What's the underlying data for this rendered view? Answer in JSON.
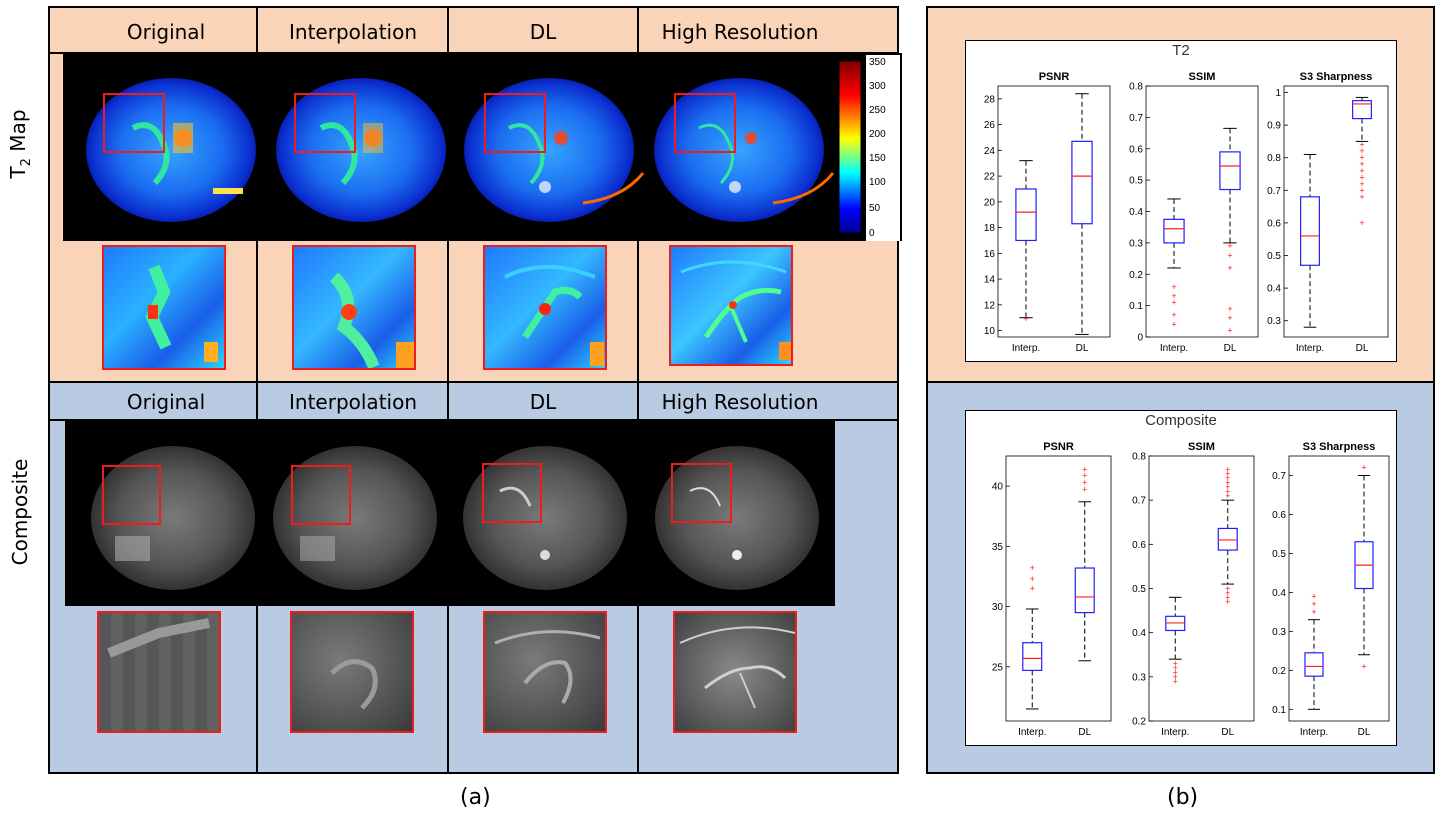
{
  "panel_a": {
    "caption": "(a)",
    "columns": [
      "Original",
      "Interpolation",
      "DL",
      "High Resolution"
    ],
    "rows": [
      {
        "label": "T",
        "sub": "2",
        "suffix": " Map"
      },
      {
        "label": "Composite",
        "sub": "",
        "suffix": ""
      }
    ],
    "colorbar": {
      "ticks": [
        "350",
        "300",
        "250",
        "200",
        "150",
        "100",
        "50",
        "0"
      ]
    }
  },
  "panel_b": {
    "caption": "(b)"
  },
  "chart_data": [
    {
      "type": "box",
      "title": "T2",
      "categories": [
        "Interp.",
        "DL"
      ],
      "subplots": [
        {
          "title": "PSNR",
          "ylim": [
            9.5,
            29
          ],
          "ticks": [
            "10",
            "12",
            "14",
            "16",
            "18",
            "20",
            "22",
            "24",
            "26",
            "28"
          ],
          "boxes": [
            {
              "name": "Interp.",
              "lower_whisker": 11,
              "q1": 17,
              "median": 19.2,
              "q3": 21,
              "upper_whisker": 23.2,
              "outliers": [
                10.9
              ]
            },
            {
              "name": "DL",
              "lower_whisker": 9.7,
              "q1": 18.3,
              "median": 22,
              "q3": 24.7,
              "upper_whisker": 28.4,
              "outliers": []
            }
          ]
        },
        {
          "title": "SSIM",
          "ylim": [
            0,
            0.8
          ],
          "ticks": [
            "0",
            "0.1",
            "0.2",
            "0.3",
            "0.4",
            "0.5",
            "0.6",
            "0.7",
            "0.8"
          ],
          "boxes": [
            {
              "name": "Interp.",
              "lower_whisker": 0.22,
              "q1": 0.3,
              "median": 0.345,
              "q3": 0.375,
              "upper_whisker": 0.44,
              "outliers": [
                0.16,
                0.13,
                0.11,
                0.07,
                0.04
              ]
            },
            {
              "name": "DL",
              "lower_whisker": 0.3,
              "q1": 0.47,
              "median": 0.545,
              "q3": 0.59,
              "upper_whisker": 0.665,
              "outliers": [
                0.29,
                0.26,
                0.22,
                0.09,
                0.06,
                0.02
              ]
            }
          ]
        },
        {
          "title": "S3 Sharpness",
          "ylim": [
            0.25,
            1.02
          ],
          "ticks": [
            "0.3",
            "0.4",
            "0.5",
            "0.6",
            "0.7",
            "0.8",
            "0.9",
            "1"
          ],
          "boxes": [
            {
              "name": "Interp.",
              "lower_whisker": 0.28,
              "q1": 0.47,
              "median": 0.56,
              "q3": 0.68,
              "upper_whisker": 0.81,
              "outliers": []
            },
            {
              "name": "DL",
              "lower_whisker": 0.85,
              "q1": 0.92,
              "median": 0.965,
              "q3": 0.975,
              "upper_whisker": 0.985,
              "outliers": [
                0.84,
                0.82,
                0.8,
                0.78,
                0.76,
                0.74,
                0.72,
                0.7,
                0.68,
                0.6
              ]
            }
          ]
        }
      ]
    },
    {
      "type": "box",
      "title": "Composite",
      "categories": [
        "Interp.",
        "DL"
      ],
      "subplots": [
        {
          "title": "PSNR",
          "ylim": [
            20.5,
            42.5
          ],
          "ticks": [
            "25",
            "30",
            "35",
            "40"
          ],
          "boxes": [
            {
              "name": "Interp.",
              "lower_whisker": 21.5,
              "q1": 24.7,
              "median": 25.7,
              "q3": 27,
              "upper_whisker": 29.8,
              "outliers": [
                31.5,
                32.3,
                33.2
              ]
            },
            {
              "name": "DL",
              "lower_whisker": 25.5,
              "q1": 29.5,
              "median": 30.8,
              "q3": 33.2,
              "upper_whisker": 38.7,
              "outliers": [
                39.7,
                40.3,
                40.9,
                41.4
              ]
            }
          ]
        },
        {
          "title": "SSIM",
          "ylim": [
            0.2,
            0.8
          ],
          "ticks": [
            "0.2",
            "0.3",
            "0.4",
            "0.5",
            "0.6",
            "0.7",
            "0.8"
          ],
          "boxes": [
            {
              "name": "Interp.",
              "lower_whisker": 0.34,
              "q1": 0.405,
              "median": 0.422,
              "q3": 0.437,
              "upper_whisker": 0.48,
              "outliers": [
                0.33,
                0.32,
                0.31,
                0.3,
                0.29
              ]
            },
            {
              "name": "DL",
              "lower_whisker": 0.51,
              "q1": 0.587,
              "median": 0.61,
              "q3": 0.636,
              "upper_whisker": 0.7,
              "outliers": [
                0.71,
                0.72,
                0.73,
                0.74,
                0.75,
                0.76,
                0.77,
                0.5,
                0.49,
                0.48,
                0.47
              ]
            }
          ]
        },
        {
          "title": "S3 Sharpness",
          "ylim": [
            0.07,
            0.75
          ],
          "ticks": [
            "0.1",
            "0.2",
            "0.3",
            "0.4",
            "0.5",
            "0.6",
            "0.7"
          ],
          "boxes": [
            {
              "name": "Interp.",
              "lower_whisker": 0.1,
              "q1": 0.185,
              "median": 0.21,
              "q3": 0.245,
              "upper_whisker": 0.33,
              "outliers": [
                0.35,
                0.37,
                0.39
              ]
            },
            {
              "name": "DL",
              "lower_whisker": 0.24,
              "q1": 0.41,
              "median": 0.47,
              "q3": 0.53,
              "upper_whisker": 0.7,
              "outliers": [
                0.72,
                0.21
              ]
            }
          ]
        }
      ]
    }
  ]
}
